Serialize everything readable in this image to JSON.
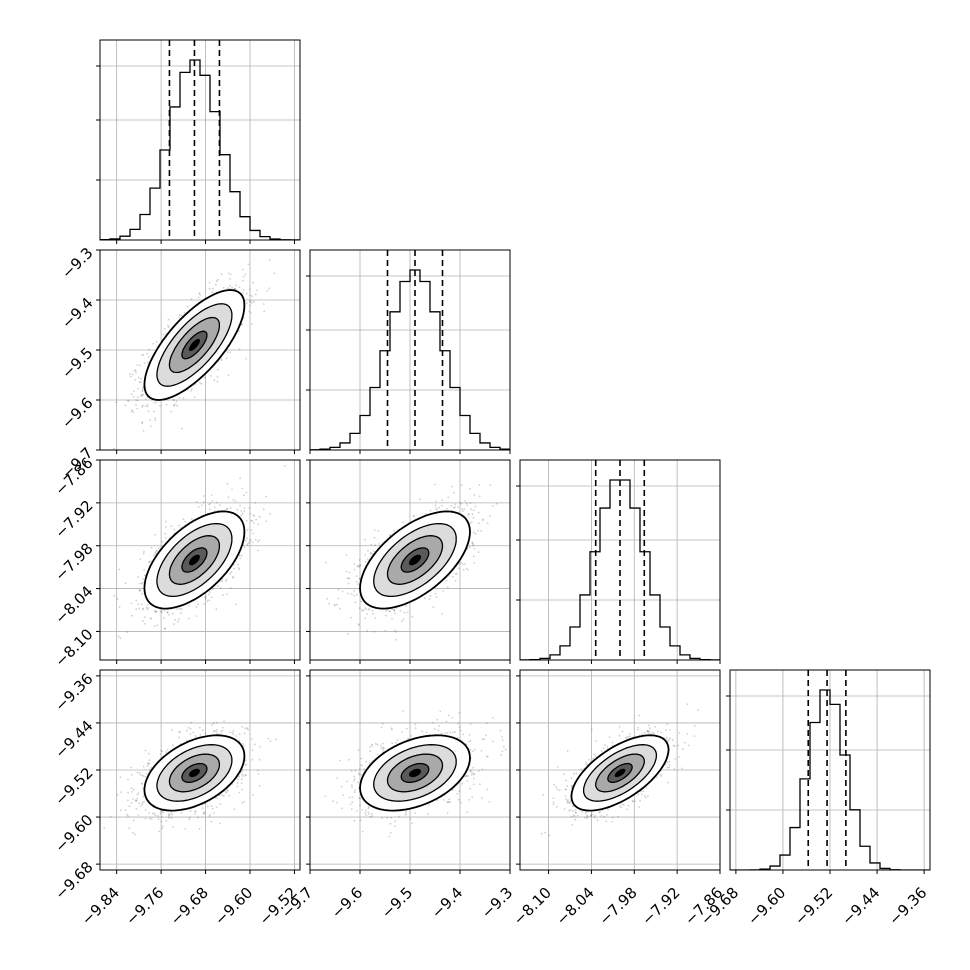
{
  "chart_data": {
    "type": "corner",
    "grid": true,
    "parameters": [
      {
        "label": "",
        "range": [
          -9.87,
          -9.51
        ],
        "ticks": [
          -9.84,
          -9.76,
          -9.68,
          -9.6,
          -9.52
        ],
        "tick_labels": [
          "−9.84",
          "−9.76",
          "−9.68",
          "−9.60",
          "−9.52"
        ],
        "mean": -9.7,
        "std": 0.045,
        "quantiles": [
          -9.745,
          -9.7,
          -9.655
        ]
      },
      {
        "label": "",
        "range": [
          -9.7,
          -9.3
        ],
        "ticks": [
          -9.7,
          -9.6,
          -9.5,
          -9.4,
          -9.3
        ],
        "tick_labels": [
          "−9.7",
          "−9.6",
          "−9.5",
          "−9.4",
          "−9.3"
        ],
        "mean": -9.49,
        "std": 0.055,
        "quantiles": [
          -9.545,
          -9.49,
          -9.435
        ]
      },
      {
        "label": "",
        "range": [
          -8.14,
          -7.86
        ],
        "ticks": [
          -8.1,
          -8.04,
          -7.98,
          -7.92,
          -7.86
        ],
        "tick_labels": [
          "−8.10",
          "−8.04",
          "−7.98",
          "−7.92",
          "−7.86"
        ],
        "mean": -8.0,
        "std": 0.034,
        "quantiles": [
          -8.034,
          -8.0,
          -7.966
        ]
      },
      {
        "label": "",
        "range": [
          -9.69,
          -9.35
        ],
        "ticks": [
          -9.68,
          -9.6,
          -9.52,
          -9.44,
          -9.36
        ],
        "tick_labels": [
          "−9.68",
          "−9.60",
          "−9.52",
          "−9.44",
          "−9.36"
        ],
        "mean": -9.525,
        "std": 0.032,
        "quantiles": [
          -9.557,
          -9.525,
          -9.493
        ]
      }
    ],
    "correlations": {
      "1_0": 0.72,
      "2_0": 0.58,
      "2_1": 0.58,
      "3_0": 0.45,
      "3_1": 0.4,
      "3_2": 0.62
    },
    "histogram_bins": 20,
    "contour_levels_sigma": [
      0.5,
      1.0,
      1.5,
      2.0
    ],
    "colors": {
      "line": "#000000",
      "grid": "#b0b0b0",
      "points": "#555555",
      "density": "#000000"
    }
  }
}
